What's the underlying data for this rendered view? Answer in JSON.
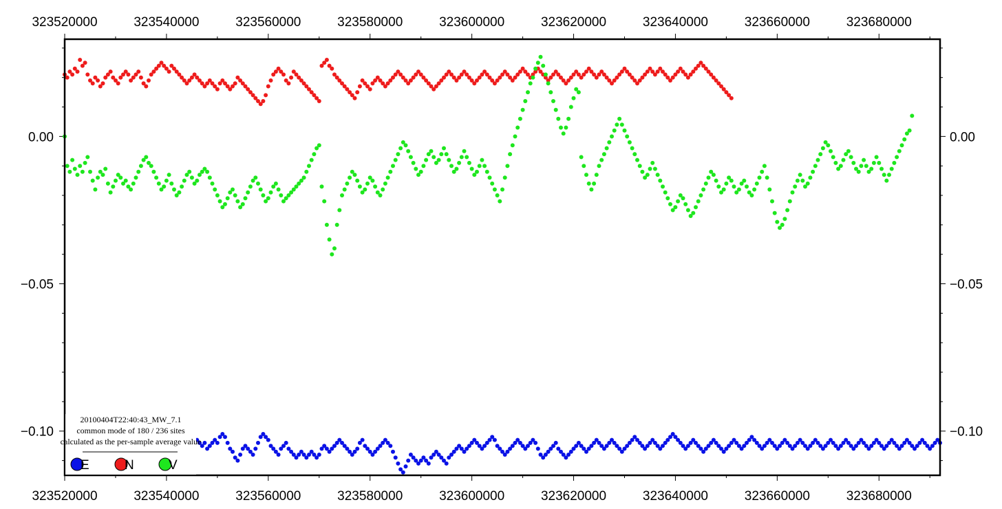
{
  "chart_data": {
    "type": "scatter",
    "title": "",
    "xlabel": "",
    "ylabel": "",
    "xlim": [
      323520000,
      323692000
    ],
    "ylim": [
      -0.115,
      0.033
    ],
    "x_ticks": [
      323520000,
      323540000,
      323560000,
      323580000,
      323600000,
      323620000,
      323640000,
      323660000,
      323680000
    ],
    "x_tick_labels": [
      "323520000",
      "323540000",
      "323560000",
      "323580000",
      "323600000",
      "323620000",
      "323640000",
      "323660000",
      "323680000"
    ],
    "y_ticks": [
      0.0,
      -0.05,
      -0.1
    ],
    "y_tick_labels": [
      "0.00",
      "−0.05",
      "−0.10"
    ],
    "grid": false,
    "legend": {
      "placement": "bottom-left",
      "lines": [
        "20100404T22:40:43_MW_7.1",
        "common mode of 180 / 236 sites",
        "calculated as the per-sample average value"
      ],
      "entries": [
        "E",
        "N",
        "V"
      ]
    },
    "series": [
      {
        "name": "E",
        "color": "#0a12e6",
        "sample_interval": 500,
        "x_start": 323546000,
        "values": [
          -0.103,
          -0.104,
          -0.105,
          -0.104,
          -0.106,
          -0.105,
          -0.104,
          -0.103,
          -0.104,
          -0.102,
          -0.101,
          -0.102,
          -0.104,
          -0.106,
          -0.107,
          -0.109,
          -0.11,
          -0.108,
          -0.106,
          -0.105,
          -0.106,
          -0.107,
          -0.108,
          -0.106,
          -0.104,
          -0.102,
          -0.101,
          -0.102,
          -0.103,
          -0.105,
          -0.106,
          -0.107,
          -0.108,
          -0.106,
          -0.105,
          -0.104,
          -0.106,
          -0.107,
          -0.108,
          -0.109,
          -0.108,
          -0.107,
          -0.108,
          -0.109,
          -0.108,
          -0.107,
          -0.108,
          -0.109,
          -0.108,
          -0.106,
          -0.105,
          -0.106,
          -0.107,
          -0.106,
          -0.105,
          -0.104,
          -0.103,
          -0.104,
          -0.105,
          -0.106,
          -0.107,
          -0.108,
          -0.107,
          -0.106,
          -0.104,
          -0.103,
          -0.105,
          -0.106,
          -0.107,
          -0.108,
          -0.107,
          -0.106,
          -0.105,
          -0.104,
          -0.103,
          -0.104,
          -0.105,
          -0.107,
          -0.109,
          -0.111,
          -0.113,
          -0.114,
          -0.112,
          -0.11,
          -0.108,
          -0.109,
          -0.11,
          -0.111,
          -0.11,
          -0.109,
          -0.11,
          -0.111,
          -0.109,
          -0.108,
          -0.107,
          -0.108,
          -0.109,
          -0.11,
          -0.111,
          -0.109,
          -0.108,
          -0.107,
          -0.106,
          -0.105,
          -0.106,
          -0.107,
          -0.106,
          -0.105,
          -0.104,
          -0.103,
          -0.104,
          -0.105,
          -0.106,
          -0.105,
          -0.104,
          -0.103,
          -0.102,
          -0.103,
          -0.105,
          -0.106,
          -0.107,
          -0.108,
          -0.107,
          -0.106,
          -0.105,
          -0.104,
          -0.103,
          -0.104,
          -0.105,
          -0.106,
          -0.105,
          -0.104,
          -0.103,
          -0.104,
          -0.106,
          -0.108,
          -0.109,
          -0.108,
          -0.107,
          -0.106,
          -0.105,
          -0.104,
          -0.106,
          -0.107,
          -0.108,
          -0.109,
          -0.108,
          -0.107,
          -0.106,
          -0.105,
          -0.104,
          -0.105,
          -0.106,
          -0.107,
          -0.106,
          -0.105,
          -0.104,
          -0.103,
          -0.104,
          -0.105,
          -0.106,
          -0.105,
          -0.104,
          -0.103,
          -0.104,
          -0.105,
          -0.106,
          -0.107,
          -0.106,
          -0.105,
          -0.104,
          -0.103,
          -0.102,
          -0.103,
          -0.104,
          -0.105,
          -0.106,
          -0.105,
          -0.104,
          -0.103,
          -0.104,
          -0.105,
          -0.106,
          -0.105,
          -0.104,
          -0.103,
          -0.102,
          -0.101,
          -0.102,
          -0.103,
          -0.104,
          -0.105,
          -0.106,
          -0.105,
          -0.104,
          -0.103,
          -0.104,
          -0.105,
          -0.106,
          -0.107,
          -0.106,
          -0.105,
          -0.104,
          -0.103,
          -0.104,
          -0.105,
          -0.106,
          -0.107,
          -0.106,
          -0.105,
          -0.104,
          -0.103,
          -0.104,
          -0.105,
          -0.106,
          -0.105,
          -0.104,
          -0.103,
          -0.102,
          -0.103,
          -0.104,
          -0.105,
          -0.106,
          -0.105,
          -0.104,
          -0.103,
          -0.104,
          -0.105,
          -0.106,
          -0.105,
          -0.104,
          -0.103,
          -0.104,
          -0.105,
          -0.106,
          -0.105,
          -0.104,
          -0.103,
          -0.104,
          -0.105,
          -0.106,
          -0.105,
          -0.104,
          -0.103,
          -0.104,
          -0.105,
          -0.106,
          -0.105,
          -0.104,
          -0.103,
          -0.104,
          -0.105,
          -0.106,
          -0.105,
          -0.104,
          -0.103,
          -0.104,
          -0.105,
          -0.106,
          -0.105,
          -0.104,
          -0.103,
          -0.104,
          -0.105,
          -0.106,
          -0.105,
          -0.104,
          -0.103,
          -0.104,
          -0.105,
          -0.106,
          -0.105,
          -0.104,
          -0.103,
          -0.104,
          -0.105,
          -0.106,
          -0.105,
          -0.104,
          -0.103,
          -0.104,
          -0.105,
          -0.106,
          -0.105,
          -0.104,
          -0.103,
          -0.104,
          -0.105,
          -0.106,
          -0.105,
          -0.104,
          -0.103,
          -0.104,
          -0.105,
          -0.106,
          -0.105,
          -0.104,
          -0.103,
          -0.104,
          -0.105,
          -0.106,
          -0.105,
          -0.104,
          -0.103,
          -0.102,
          -0.101,
          -0.1
        ]
      },
      {
        "name": "N",
        "color": "#ee1c1c",
        "sample_interval": 500,
        "x_start": 323520000,
        "values": [
          0.021,
          0.02,
          0.022,
          0.021,
          0.023,
          0.022,
          0.026,
          0.024,
          0.025,
          0.021,
          0.019,
          0.018,
          0.02,
          0.019,
          0.017,
          0.018,
          0.02,
          0.021,
          0.022,
          0.02,
          0.019,
          0.018,
          0.02,
          0.021,
          0.022,
          0.021,
          0.019,
          0.02,
          0.021,
          0.022,
          0.02,
          0.018,
          0.017,
          0.019,
          0.021,
          0.022,
          0.023,
          0.024,
          0.025,
          0.024,
          0.023,
          0.022,
          0.024,
          0.023,
          0.022,
          0.021,
          0.02,
          0.019,
          0.018,
          0.019,
          0.02,
          0.021,
          0.02,
          0.019,
          0.018,
          0.017,
          0.018,
          0.019,
          0.018,
          0.017,
          0.016,
          0.018,
          0.019,
          0.018,
          0.017,
          0.016,
          0.017,
          0.018,
          0.02,
          0.019,
          0.018,
          0.017,
          0.016,
          0.015,
          0.014,
          0.013,
          0.012,
          0.011,
          0.012,
          0.014,
          0.017,
          0.019,
          0.021,
          0.022,
          0.023,
          0.022,
          0.021,
          0.019,
          0.018,
          0.02,
          0.022,
          0.021,
          0.02,
          0.019,
          0.018,
          0.017,
          0.016,
          0.015,
          0.014,
          0.013,
          0.012,
          0.024,
          0.025,
          0.026,
          0.024,
          0.023,
          0.021,
          0.02,
          0.019,
          0.018,
          0.017,
          0.016,
          0.015,
          0.014,
          0.013,
          0.015,
          0.017,
          0.019,
          0.018,
          0.017,
          0.016,
          0.018,
          0.019,
          0.02,
          0.019,
          0.018,
          0.017,
          0.018,
          0.019,
          0.02,
          0.021,
          0.022,
          0.021,
          0.02,
          0.019,
          0.018,
          0.019,
          0.02,
          0.021,
          0.022,
          0.021,
          0.02,
          0.019,
          0.018,
          0.017,
          0.016,
          0.017,
          0.018,
          0.019,
          0.02,
          0.021,
          0.022,
          0.021,
          0.02,
          0.019,
          0.02,
          0.021,
          0.022,
          0.021,
          0.02,
          0.019,
          0.018,
          0.019,
          0.02,
          0.021,
          0.022,
          0.021,
          0.02,
          0.019,
          0.018,
          0.019,
          0.02,
          0.021,
          0.022,
          0.021,
          0.02,
          0.019,
          0.02,
          0.021,
          0.022,
          0.023,
          0.022,
          0.021,
          0.02,
          0.021,
          0.022,
          0.023,
          0.022,
          0.021,
          0.02,
          0.019,
          0.02,
          0.021,
          0.022,
          0.021,
          0.02,
          0.019,
          0.018,
          0.019,
          0.02,
          0.021,
          0.022,
          0.021,
          0.02,
          0.021,
          0.022,
          0.023,
          0.022,
          0.021,
          0.02,
          0.021,
          0.022,
          0.021,
          0.02,
          0.019,
          0.018,
          0.019,
          0.02,
          0.021,
          0.022,
          0.023,
          0.022,
          0.021,
          0.02,
          0.019,
          0.018,
          0.019,
          0.02,
          0.021,
          0.022,
          0.023,
          0.022,
          0.021,
          0.022,
          0.023,
          0.022,
          0.021,
          0.02,
          0.019,
          0.02,
          0.021,
          0.022,
          0.023,
          0.022,
          0.021,
          0.02,
          0.021,
          0.022,
          0.023,
          0.024,
          0.025,
          0.024,
          0.023,
          0.022,
          0.021,
          0.02,
          0.019,
          0.018,
          0.017,
          0.016,
          0.015,
          0.014,
          0.013
        ]
      },
      {
        "name": "V",
        "color": "#1ee61e",
        "sample_interval": 500,
        "x_start": 323520000,
        "values": [
          0.0,
          -0.01,
          -0.012,
          -0.008,
          -0.011,
          -0.013,
          -0.01,
          -0.012,
          -0.009,
          -0.007,
          -0.012,
          -0.015,
          -0.018,
          -0.014,
          -0.012,
          -0.013,
          -0.011,
          -0.016,
          -0.019,
          -0.017,
          -0.015,
          -0.013,
          -0.014,
          -0.016,
          -0.015,
          -0.017,
          -0.018,
          -0.016,
          -0.014,
          -0.012,
          -0.01,
          -0.008,
          -0.007,
          -0.009,
          -0.01,
          -0.012,
          -0.014,
          -0.016,
          -0.018,
          -0.017,
          -0.015,
          -0.013,
          -0.016,
          -0.018,
          -0.02,
          -0.019,
          -0.017,
          -0.015,
          -0.013,
          -0.012,
          -0.014,
          -0.016,
          -0.015,
          -0.013,
          -0.012,
          -0.011,
          -0.012,
          -0.014,
          -0.016,
          -0.018,
          -0.02,
          -0.022,
          -0.024,
          -0.023,
          -0.021,
          -0.019,
          -0.018,
          -0.02,
          -0.022,
          -0.024,
          -0.023,
          -0.021,
          -0.019,
          -0.017,
          -0.015,
          -0.014,
          -0.016,
          -0.018,
          -0.02,
          -0.022,
          -0.021,
          -0.019,
          -0.017,
          -0.016,
          -0.018,
          -0.02,
          -0.022,
          -0.021,
          -0.02,
          -0.019,
          -0.018,
          -0.017,
          -0.016,
          -0.015,
          -0.014,
          -0.012,
          -0.01,
          -0.008,
          -0.006,
          -0.004,
          -0.003,
          -0.017,
          -0.022,
          -0.03,
          -0.035,
          -0.04,
          -0.038,
          -0.03,
          -0.025,
          -0.02,
          -0.018,
          -0.016,
          -0.014,
          -0.012,
          -0.013,
          -0.015,
          -0.017,
          -0.019,
          -0.018,
          -0.016,
          -0.014,
          -0.015,
          -0.017,
          -0.019,
          -0.02,
          -0.018,
          -0.016,
          -0.014,
          -0.012,
          -0.01,
          -0.008,
          -0.006,
          -0.004,
          -0.002,
          -0.003,
          -0.005,
          -0.007,
          -0.009,
          -0.011,
          -0.013,
          -0.012,
          -0.01,
          -0.008,
          -0.006,
          -0.005,
          -0.007,
          -0.009,
          -0.008,
          -0.006,
          -0.004,
          -0.006,
          -0.008,
          -0.01,
          -0.012,
          -0.011,
          -0.009,
          -0.007,
          -0.005,
          -0.007,
          -0.009,
          -0.011,
          -0.013,
          -0.012,
          -0.01,
          -0.008,
          -0.01,
          -0.012,
          -0.014,
          -0.016,
          -0.018,
          -0.02,
          -0.022,
          -0.018,
          -0.014,
          -0.01,
          -0.006,
          -0.003,
          0.0,
          0.003,
          0.006,
          0.009,
          0.012,
          0.015,
          0.018,
          0.02,
          0.023,
          0.025,
          0.027,
          0.024,
          0.021,
          0.018,
          0.015,
          0.012,
          0.009,
          0.006,
          0.003,
          0.001,
          0.003,
          0.006,
          0.01,
          0.013,
          0.016,
          0.015,
          -0.007,
          -0.01,
          -0.013,
          -0.016,
          -0.018,
          -0.016,
          -0.013,
          -0.01,
          -0.008,
          -0.006,
          -0.004,
          -0.002,
          0.0,
          0.002,
          0.004,
          0.006,
          0.004,
          0.002,
          0.0,
          -0.002,
          -0.004,
          -0.006,
          -0.008,
          -0.01,
          -0.012,
          -0.014,
          -0.013,
          -0.011,
          -0.009,
          -0.011,
          -0.013,
          -0.015,
          -0.017,
          -0.019,
          -0.021,
          -0.023,
          -0.025,
          -0.024,
          -0.022,
          -0.02,
          -0.021,
          -0.023,
          -0.025,
          -0.027,
          -0.026,
          -0.024,
          -0.022,
          -0.02,
          -0.018,
          -0.016,
          -0.014,
          -0.012,
          -0.013,
          -0.015,
          -0.017,
          -0.019,
          -0.018,
          -0.016,
          -0.014,
          -0.015,
          -0.017,
          -0.019,
          -0.018,
          -0.016,
          -0.015,
          -0.017,
          -0.019,
          -0.02,
          -0.018,
          -0.016,
          -0.014,
          -0.012,
          -0.01,
          -0.014,
          -0.018,
          -0.022,
          -0.026,
          -0.029,
          -0.031,
          -0.03,
          -0.028,
          -0.025,
          -0.022,
          -0.019,
          -0.017,
          -0.015,
          -0.013,
          -0.015,
          -0.017,
          -0.016,
          -0.014,
          -0.012,
          -0.01,
          -0.008,
          -0.006,
          -0.004,
          -0.002,
          -0.003,
          -0.005,
          -0.007,
          -0.009,
          -0.011,
          -0.01,
          -0.008,
          -0.006,
          -0.005,
          -0.007,
          -0.009,
          -0.011,
          -0.012,
          -0.01,
          -0.008,
          -0.01,
          -0.012,
          -0.011,
          -0.009,
          -0.007,
          -0.009,
          -0.011,
          -0.013,
          -0.015,
          -0.013,
          -0.011,
          -0.009,
          -0.007,
          -0.005,
          -0.003,
          -0.001,
          0.001,
          0.002,
          0.007
        ]
      }
    ]
  }
}
